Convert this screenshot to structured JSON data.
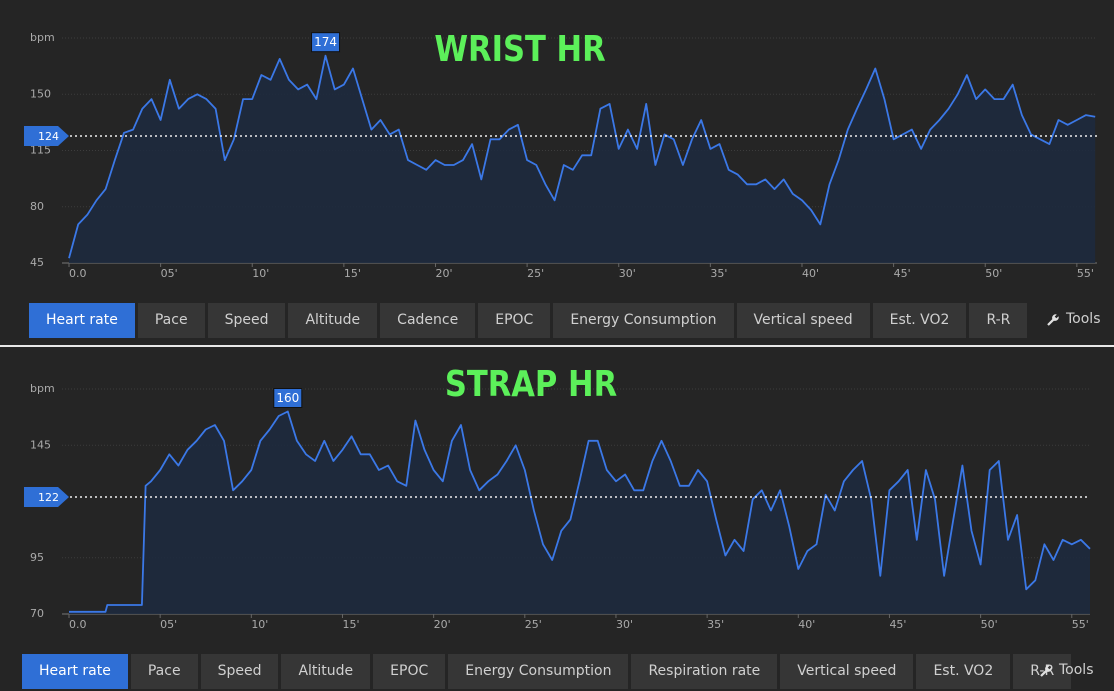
{
  "chart_data": [
    {
      "type": "line",
      "title": "WRIST HR",
      "ylabel": "bpm",
      "color": "#3b78e7",
      "ylim": [
        45,
        185
      ],
      "yticks": [
        45,
        80,
        115,
        150
      ],
      "xlim": [
        0,
        56.1
      ],
      "xticks": [
        {
          "value": 0,
          "label": "0.0"
        },
        {
          "value": 5,
          "label": "05'"
        },
        {
          "value": 10,
          "label": "10'"
        },
        {
          "value": 15,
          "label": "15'"
        },
        {
          "value": 20,
          "label": "20'"
        },
        {
          "value": 25,
          "label": "25'"
        },
        {
          "value": 30,
          "label": "30'"
        },
        {
          "value": 35,
          "label": "35'"
        },
        {
          "value": 40,
          "label": "40'"
        },
        {
          "value": 45,
          "label": "45'"
        },
        {
          "value": 50,
          "label": "50'"
        },
        {
          "value": 55,
          "label": "55'"
        }
      ],
      "average": 124,
      "max": 174,
      "x": [
        0,
        0.5,
        1,
        1.5,
        2,
        2.5,
        3,
        3.5,
        4,
        4.5,
        5,
        5.5,
        6,
        6.5,
        7,
        7.5,
        8,
        8.5,
        9,
        9.5,
        10,
        10.5,
        11,
        11.5,
        12,
        12.5,
        13,
        13.5,
        14,
        14.5,
        15,
        15.5,
        16,
        16.5,
        17,
        17.5,
        18,
        18.5,
        19,
        19.5,
        20,
        20.5,
        21,
        21.5,
        22,
        22.5,
        23,
        23.5,
        24,
        24.5,
        25,
        25.5,
        26,
        26.5,
        27,
        27.5,
        28,
        28.5,
        29,
        29.5,
        30,
        30.5,
        31,
        31.5,
        32,
        32.5,
        33,
        33.5,
        34,
        34.5,
        35,
        35.5,
        36,
        36.5,
        37,
        37.5,
        38,
        38.5,
        39,
        39.5,
        40,
        40.5,
        41,
        41.5,
        42,
        42.5,
        43,
        43.5,
        44,
        44.5,
        45,
        45.5,
        46,
        46.5,
        47,
        47.5,
        48,
        48.5,
        49,
        49.5,
        50,
        50.5,
        51,
        51.5,
        52,
        52.5,
        53,
        53.5,
        54,
        54.5,
        55,
        55.5,
        56
      ],
      "values": [
        48,
        69,
        75,
        84,
        91,
        109,
        126,
        128,
        141,
        147,
        134,
        159,
        141,
        147,
        150,
        147,
        141,
        109,
        122,
        147,
        147,
        162,
        159,
        172,
        159,
        153,
        156,
        147,
        174,
        153,
        156,
        166,
        147,
        128,
        134,
        125,
        128,
        109,
        106,
        103,
        109,
        106,
        106,
        109,
        119,
        97,
        122,
        122,
        128,
        131,
        109,
        106,
        94,
        84,
        106,
        103,
        112,
        112,
        141,
        144,
        116,
        128,
        116,
        144,
        106,
        125,
        122,
        106,
        122,
        134,
        116,
        119,
        103,
        100,
        94,
        94,
        97,
        91,
        97,
        88,
        84,
        78,
        69,
        94,
        109,
        128,
        141,
        153,
        166,
        147,
        122,
        125,
        128,
        116,
        128,
        134,
        141,
        150,
        162,
        147,
        153,
        147,
        147,
        156,
        137,
        125,
        122,
        119,
        134,
        131,
        134,
        137,
        136
      ]
    },
    {
      "type": "line",
      "title": "STRAP HR",
      "ylabel": "bpm",
      "color": "#3b78e7",
      "ylim": [
        70,
        170
      ],
      "yticks": [
        70,
        95,
        145
      ],
      "xlim": [
        0,
        56.0
      ],
      "xticks": [
        {
          "value": 0,
          "label": "0.0"
        },
        {
          "value": 5,
          "label": "05'"
        },
        {
          "value": 10,
          "label": "10'"
        },
        {
          "value": 15,
          "label": "15'"
        },
        {
          "value": 20,
          "label": "20'"
        },
        {
          "value": 25,
          "label": "25'"
        },
        {
          "value": 30,
          "label": "30'"
        },
        {
          "value": 35,
          "label": "35'"
        },
        {
          "value": 40,
          "label": "40'"
        },
        {
          "value": 45,
          "label": "45'"
        },
        {
          "value": 50,
          "label": "50'"
        },
        {
          "value": 55,
          "label": "55'"
        }
      ],
      "average": 122,
      "max": 160,
      "x": [
        0,
        1,
        2,
        2.1,
        3,
        4,
        4.2,
        4.5,
        5,
        5.5,
        6,
        6.5,
        7,
        7.5,
        8,
        8.5,
        9,
        9.5,
        10,
        10.5,
        11,
        11.5,
        12,
        12.5,
        13,
        13.5,
        14,
        14.5,
        15,
        15.5,
        16,
        16.5,
        17,
        17.5,
        18,
        18.5,
        19,
        19.5,
        20,
        20.5,
        21,
        21.5,
        22,
        22.5,
        23,
        23.5,
        24,
        24.5,
        25,
        25.5,
        26,
        26.5,
        27,
        27.5,
        28,
        28.5,
        29,
        29.5,
        30,
        30.5,
        31,
        31.5,
        32,
        32.5,
        33,
        33.5,
        34,
        34.5,
        35,
        35.5,
        36,
        36.5,
        37,
        37.5,
        38,
        38.5,
        39,
        39.5,
        40,
        40.5,
        41,
        41.5,
        42,
        42.5,
        43,
        43.5,
        44,
        44.5,
        45,
        45.5,
        46,
        46.5,
        47,
        47.5,
        48,
        48.5,
        49,
        49.5,
        50,
        50.5,
        51,
        51.5,
        52,
        52.5,
        53,
        53.5,
        54,
        54.5,
        55,
        55.5,
        56
      ],
      "values": [
        71,
        71,
        71,
        74,
        74,
        74,
        127,
        129,
        134,
        141,
        136,
        143,
        147,
        152,
        154,
        147,
        125,
        129,
        134,
        147,
        152,
        158,
        160,
        147,
        141,
        138,
        147,
        138,
        143,
        149,
        141,
        141,
        134,
        136,
        129,
        127,
        156,
        143,
        134,
        129,
        147,
        154,
        134,
        125,
        129,
        132,
        138,
        145,
        134,
        116,
        101,
        94,
        107,
        112,
        129,
        147,
        147,
        134,
        129,
        132,
        125,
        125,
        138,
        147,
        138,
        127,
        127,
        134,
        129,
        112,
        96,
        103,
        98,
        121,
        125,
        116,
        125,
        109,
        90,
        98,
        101,
        123,
        116,
        129,
        134,
        138,
        121,
        87,
        125,
        129,
        134,
        103,
        134,
        121,
        87,
        112,
        136,
        107,
        92,
        134,
        138,
        103,
        114,
        81,
        85,
        101,
        94,
        103,
        101,
        103,
        99
      ]
    }
  ],
  "panels": [
    {
      "tabs": [
        "Heart rate",
        "Pace",
        "Speed",
        "Altitude",
        "Cadence",
        "EPOC",
        "Energy Consumption",
        "Vertical speed",
        "Est. VO2",
        "R-R"
      ],
      "tools": "Tools"
    },
    {
      "tabs": [
        "Heart rate",
        "Pace",
        "Speed",
        "Altitude",
        "EPOC",
        "Energy Consumption",
        "Respiration rate",
        "Vertical speed",
        "Est. VO2",
        "R-R"
      ],
      "tools": "Tools"
    }
  ]
}
